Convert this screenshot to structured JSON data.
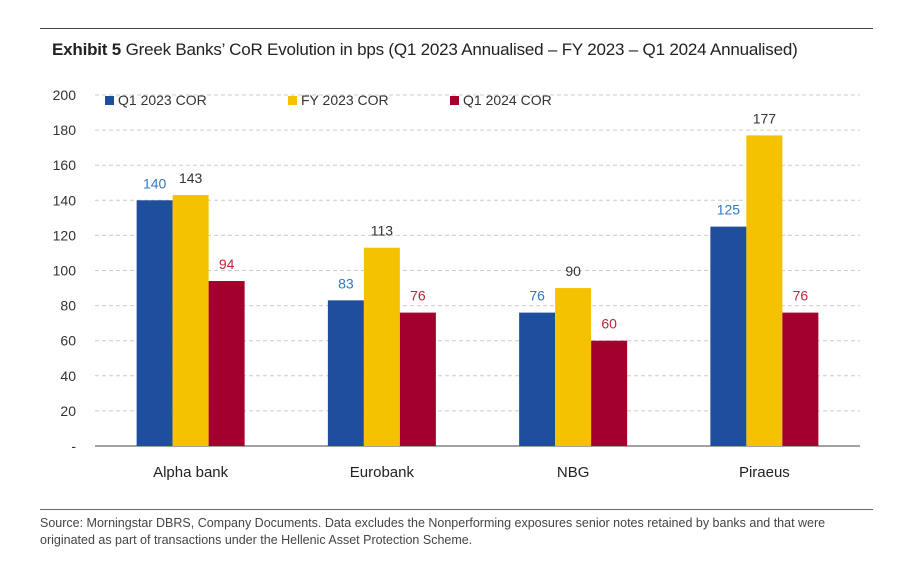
{
  "exhibit": {
    "label": "Exhibit 5",
    "title": "Greek Banks’ CoR Evolution in bps (Q1 2023 Annualised – FY 2023 – Q1 2024 Annualised)"
  },
  "source": "Source: Morningstar DBRS, Company Documents. Data excludes the Nonperforming exposures senior notes retained by banks and that were originated as part of transactions under the Hellenic Asset Protection Scheme.",
  "colors": {
    "q1_2023": "#1f4e9c",
    "fy_2023": "#f5c200",
    "q1_2024": "#a3002d",
    "grid": "#cccccc",
    "axis": "#444444"
  },
  "chart_data": {
    "type": "bar",
    "title": "Greek Banks’ CoR Evolution in bps (Q1 2023 Annualised – FY 2023 – Q1 2024 Annualised)",
    "xlabel": "",
    "ylabel": "",
    "ylim": [
      0,
      200
    ],
    "yticks": [
      0,
      20,
      40,
      60,
      80,
      100,
      120,
      140,
      160,
      180,
      200
    ],
    "ytick_labels": [
      "-",
      "20",
      "40",
      "60",
      "80",
      "100",
      "120",
      "140",
      "160",
      "180",
      "200"
    ],
    "grid": true,
    "legend_position": "top",
    "categories": [
      "Alpha bank",
      "Eurobank",
      "NBG",
      "Piraeus"
    ],
    "series": [
      {
        "name": "Q1 2023 COR",
        "key": "q1_2023",
        "values": [
          140,
          83,
          76,
          125
        ]
      },
      {
        "name": "FY 2023 COR",
        "key": "fy_2023",
        "values": [
          143,
          113,
          90,
          177
        ]
      },
      {
        "name": "Q1 2024 COR",
        "key": "q1_2024",
        "values": [
          94,
          76,
          60,
          76
        ]
      }
    ]
  }
}
